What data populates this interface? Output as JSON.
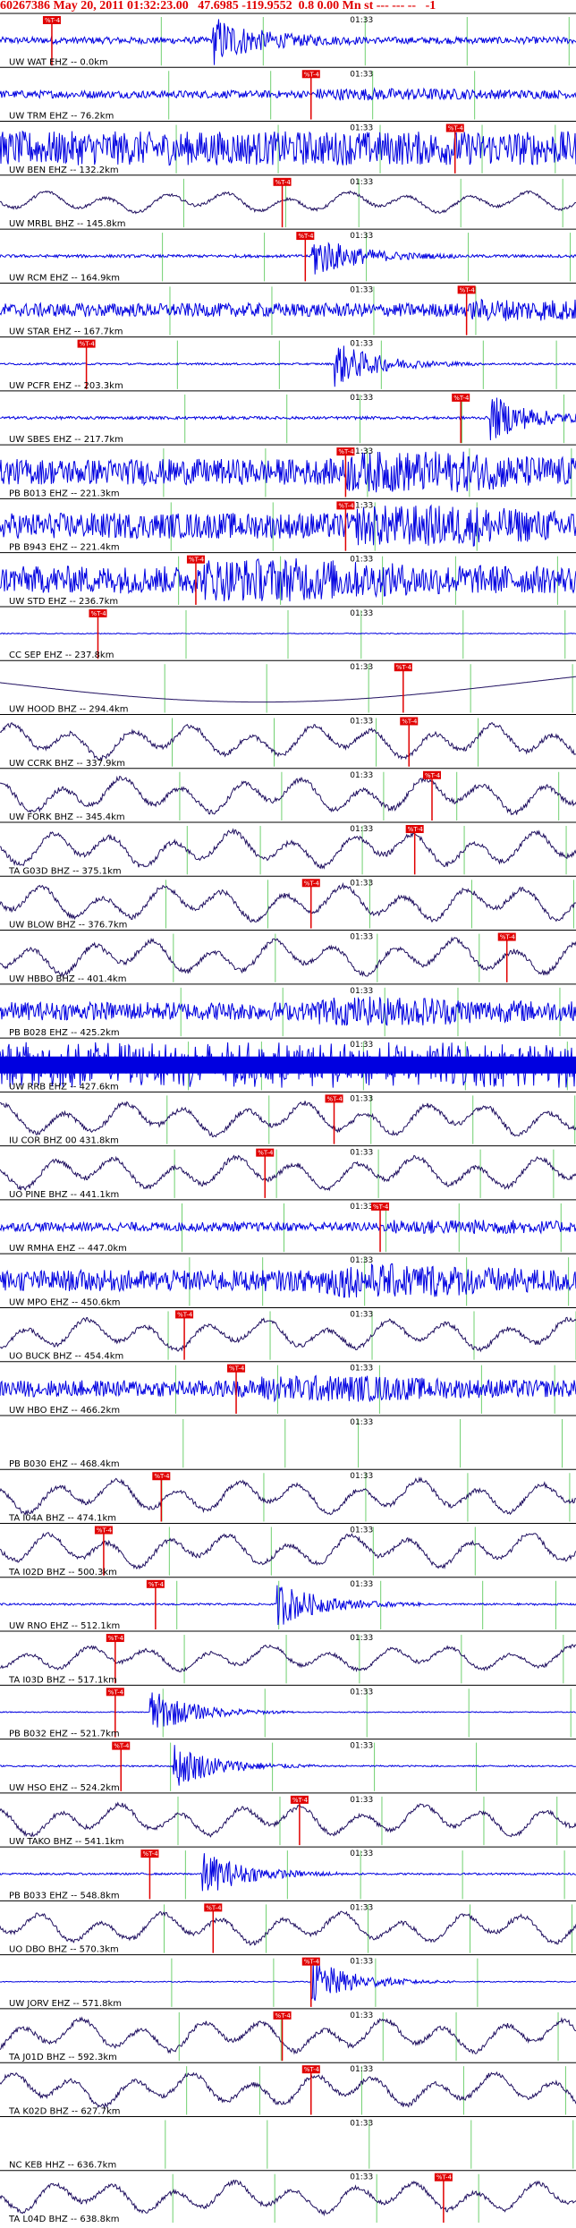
{
  "title": "60267386 May 20, 2011 01:32:23.00   47.6985 -119.9552  0.8 0.00 Mn st --- --- --   -1",
  "chart_data": {
    "type": "line",
    "time_tick_label": "01:33",
    "pick_label": "%T-4",
    "colors": {
      "trace_blue": "#0000e0",
      "trace_dark": "#201060",
      "pick_marker": "#e00000",
      "pick_line": "#e00000",
      "tick_line": "#70d070",
      "separator": "#000000",
      "title": "#e00000"
    },
    "traces": [
      {
        "label": "UW WAT EHZ -- 0.0km",
        "style": "burst",
        "amp": 0.35,
        "burst_at": 0.37,
        "color": "blue",
        "pick": 0.09
      },
      {
        "label": "UW TRM EHZ -- 76.2km",
        "style": "noise",
        "amp": 0.25,
        "burst_at": 0.55,
        "color": "blue",
        "pick": 0.54
      },
      {
        "label": "UW BEN EHZ -- 132.2km",
        "style": "noise",
        "amp": 0.7,
        "burst_at": 0,
        "color": "blue",
        "pick": 0.79
      },
      {
        "label": "UW MRBL BHZ -- 145.8km",
        "style": "wave",
        "amp": 0.5,
        "burst_at": 0.5,
        "color": "dark",
        "pick": 0.49
      },
      {
        "label": "UW RCM EHZ -- 164.9km",
        "style": "burst",
        "amp": 0.15,
        "burst_at": 0.54,
        "color": "blue",
        "pick": 0.53
      },
      {
        "label": "UW STAR EHZ -- 167.7km",
        "style": "noise",
        "amp": 0.45,
        "burst_at": 0.82,
        "color": "blue",
        "pick": 0.81
      },
      {
        "label": "UW PCFR EHZ -- 203.3km",
        "style": "burst",
        "amp": 0.1,
        "burst_at": 0.58,
        "color": "blue",
        "pick": 0.15
      },
      {
        "label": "UW SBES EHZ -- 217.7km",
        "style": "burst",
        "amp": 0.15,
        "burst_at": 0.85,
        "color": "blue",
        "pick": 0.8
      },
      {
        "label": "PB B013 EHZ -- 221.3km",
        "style": "noise",
        "amp": 0.85,
        "burst_at": 0.6,
        "color": "blue",
        "pick": 0.6
      },
      {
        "label": "PB B943 EHZ -- 221.4km",
        "style": "noise",
        "amp": 0.85,
        "burst_at": 0.62,
        "color": "blue",
        "pick": 0.6
      },
      {
        "label": "UW STD EHZ -- 236.7km",
        "style": "noise",
        "amp": 0.9,
        "burst_at": 0.35,
        "color": "blue",
        "pick": 0.34
      },
      {
        "label": "CC SEP EHZ -- 237.8km",
        "style": "flat",
        "amp": 0.02,
        "burst_at": 0,
        "color": "blue",
        "pick": 0.17
      },
      {
        "label": "UW HOOD BHZ -- 294.4km",
        "style": "slow",
        "amp": 0.8,
        "burst_at": 0,
        "color": "dark",
        "pick": 0.7
      },
      {
        "label": "UW CCRK BHZ -- 337.9km",
        "style": "wave",
        "amp": 0.8,
        "burst_at": 0.72,
        "color": "dark",
        "pick": 0.71
      },
      {
        "label": "UW FORK BHZ -- 345.4km",
        "style": "wave",
        "amp": 0.85,
        "burst_at": 0.75,
        "color": "dark",
        "pick": 0.75
      },
      {
        "label": "TA G03D BHZ -- 375.1km",
        "style": "wave",
        "amp": 0.85,
        "burst_at": 0.72,
        "color": "dark",
        "pick": 0.72
      },
      {
        "label": "UW BLOW BHZ -- 376.7km",
        "style": "wave",
        "amp": 0.85,
        "burst_at": 0.54,
        "color": "dark",
        "pick": 0.54
      },
      {
        "label": "UW HBBO BHZ -- 401.4km",
        "style": "wave",
        "amp": 0.85,
        "burst_at": 0.88,
        "color": "dark",
        "pick": 0.88
      },
      {
        "label": "PB B028 EHZ -- 425.2km",
        "style": "noise",
        "amp": 0.6,
        "burst_at": 0.55,
        "color": "blue",
        "pick": 0
      },
      {
        "label": "UW RRB EHZ -- 427.6km",
        "style": "spiky",
        "amp": 0.9,
        "burst_at": 0,
        "color": "blue",
        "pick": 0
      },
      {
        "label": "IU COR BHZ 00 431.8km",
        "style": "wave",
        "amp": 0.8,
        "burst_at": 0.58,
        "color": "dark",
        "pick": 0.58
      },
      {
        "label": "UO PINE BHZ -- 441.1km",
        "style": "wave",
        "amp": 0.8,
        "burst_at": 0.46,
        "color": "dark",
        "pick": 0.46
      },
      {
        "label": "UW RMHA EHZ -- 447.0km",
        "style": "noise",
        "amp": 0.3,
        "burst_at": 0.68,
        "color": "blue",
        "pick": 0.66
      },
      {
        "label": "UW MPO EHZ -- 450.6km",
        "style": "noise",
        "amp": 0.7,
        "burst_at": 0.55,
        "color": "blue",
        "pick": 0
      },
      {
        "label": "UO BUCK BHZ -- 454.4km",
        "style": "wave",
        "amp": 0.75,
        "burst_at": 0.32,
        "color": "dark",
        "pick": 0.32
      },
      {
        "label": "UW HBO EHZ -- 466.2km",
        "style": "noise",
        "amp": 0.55,
        "burst_at": 0.45,
        "color": "blue",
        "pick": 0.41
      },
      {
        "label": "PB B030 EHZ -- 468.4km",
        "style": "empty",
        "amp": 0,
        "burst_at": 0,
        "color": "blue",
        "pick": 0
      },
      {
        "label": "TA I04A BHZ -- 474.1km",
        "style": "wave",
        "amp": 0.8,
        "burst_at": 0.28,
        "color": "dark",
        "pick": 0.28
      },
      {
        "label": "TA I02D BHZ -- 500.3km",
        "style": "wave",
        "amp": 0.8,
        "burst_at": 0.18,
        "color": "dark",
        "pick": 0.18
      },
      {
        "label": "UW RNO EHZ -- 512.1km",
        "style": "burst",
        "amp": 0.1,
        "burst_at": 0.48,
        "color": "blue",
        "pick": 0.27
      },
      {
        "label": "TA I03D BHZ -- 517.1km",
        "style": "wave",
        "amp": 0.6,
        "burst_at": 0.2,
        "color": "dark",
        "pick": 0.2
      },
      {
        "label": "PB B032 EHZ -- 521.7km",
        "style": "burst",
        "amp": 0.05,
        "burst_at": 0.26,
        "color": "blue",
        "pick": 0.2
      },
      {
        "label": "UW HSO EHZ -- 524.2km",
        "style": "burst",
        "amp": 0.08,
        "burst_at": 0.3,
        "color": "blue",
        "pick": 0.21
      },
      {
        "label": "UW TAKO BHZ -- 541.1km",
        "style": "wave",
        "amp": 0.75,
        "burst_at": 0.52,
        "color": "dark",
        "pick": 0.52
      },
      {
        "label": "PB B033 EHZ -- 548.8km",
        "style": "burst",
        "amp": 0.1,
        "burst_at": 0.35,
        "color": "blue",
        "pick": 0.26
      },
      {
        "label": "UO DBO BHZ -- 570.3km",
        "style": "wave",
        "amp": 0.75,
        "burst_at": 0.37,
        "color": "dark",
        "pick": 0.37
      },
      {
        "label": "UW JORV EHZ -- 571.8km",
        "style": "burst",
        "amp": 0.05,
        "burst_at": 0.54,
        "color": "blue",
        "pick": 0.54
      },
      {
        "label": "TA J01D BHZ -- 592.3km",
        "style": "wave",
        "amp": 0.8,
        "burst_at": 0.49,
        "color": "dark",
        "pick": 0.49
      },
      {
        "label": "TA K02D BHZ -- 627.7km",
        "style": "wave",
        "amp": 0.8,
        "burst_at": 0.54,
        "color": "dark",
        "pick": 0.54
      },
      {
        "label": "NC KEB HHZ -- 636.7km",
        "style": "empty",
        "amp": 0,
        "burst_at": 0,
        "color": "blue",
        "pick": 0
      },
      {
        "label": "TA L04D BHZ -- 638.8km",
        "style": "wave",
        "amp": 0.75,
        "burst_at": 0.77,
        "color": "dark",
        "pick": 0.77
      }
    ]
  }
}
